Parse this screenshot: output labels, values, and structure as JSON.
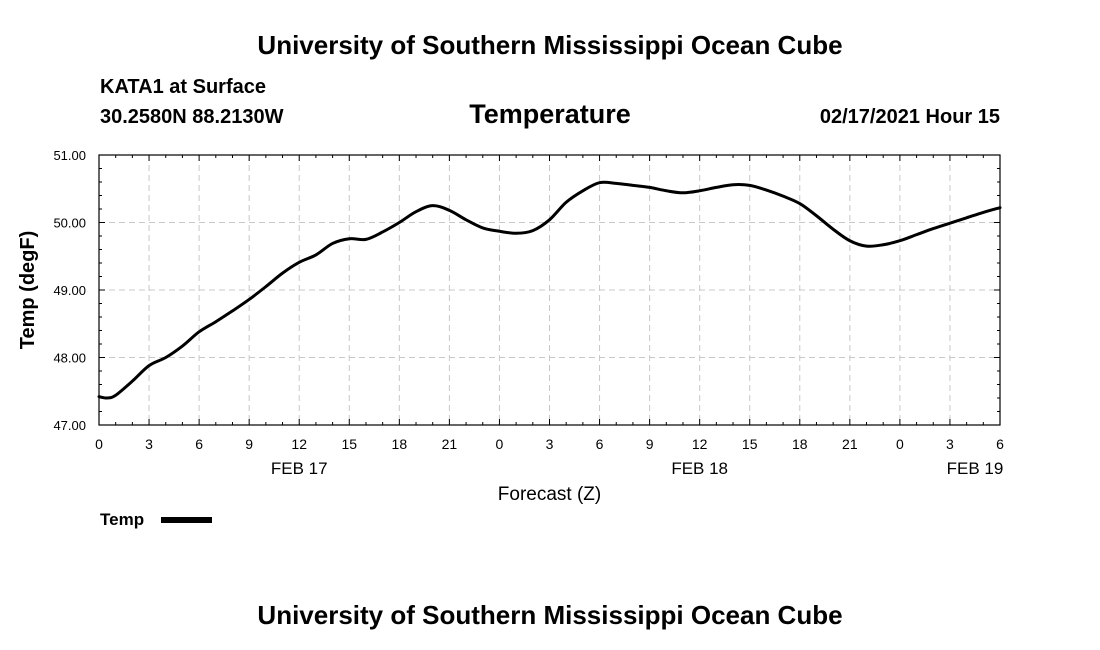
{
  "banner_top": "University of Southern Mississippi Ocean Cube",
  "banner_bottom": "University of Southern Mississippi Ocean Cube",
  "station": "KATA1 at Surface",
  "coords": "30.2580N 88.2130W",
  "timestamp": "02/17/2021 Hour 15",
  "chart_data": {
    "type": "line",
    "title": "Temperature",
    "xlabel": "Forecast (Z)",
    "ylabel": "Temp (degF)",
    "ylim": [
      47.0,
      51.0
    ],
    "xlim": [
      0,
      54
    ],
    "grid": true,
    "y_ticks": [
      "47.00",
      "48.00",
      "49.00",
      "50.00",
      "51.00"
    ],
    "x_ticks": [
      "0",
      "3",
      "6",
      "9",
      "12",
      "15",
      "18",
      "21",
      "0",
      "3",
      "6",
      "9",
      "12",
      "15",
      "18",
      "21",
      "0",
      "3",
      "6"
    ],
    "day_labels": [
      {
        "label": "FEB 17",
        "hour": 12
      },
      {
        "label": "FEB 18",
        "hour": 36
      },
      {
        "label": "FEB 19",
        "hour": 52.5
      }
    ],
    "legend": [
      {
        "name": "Temp",
        "color": "#000000"
      }
    ],
    "series": [
      {
        "name": "Temp",
        "color": "#000000",
        "x": [
          0,
          0.5,
          1,
          2,
          3,
          4,
          5,
          6,
          7,
          8,
          9,
          10,
          11,
          12,
          13,
          14,
          15,
          16,
          17,
          18,
          19,
          20,
          21,
          22,
          23,
          24,
          25,
          26,
          27,
          28,
          29,
          30,
          31,
          32,
          33,
          34,
          35,
          36,
          37,
          38,
          39,
          40,
          41,
          42,
          43,
          44,
          45,
          46,
          47,
          48,
          49,
          50,
          51,
          52,
          53,
          54
        ],
        "values": [
          47.42,
          47.4,
          47.44,
          47.65,
          47.88,
          48.0,
          48.17,
          48.38,
          48.53,
          48.69,
          48.86,
          49.05,
          49.25,
          49.41,
          49.52,
          49.69,
          49.76,
          49.75,
          49.86,
          50.0,
          50.16,
          50.25,
          50.18,
          50.04,
          49.92,
          49.87,
          49.84,
          49.88,
          50.04,
          50.3,
          50.47,
          50.59,
          50.58,
          50.55,
          50.52,
          50.47,
          50.44,
          50.47,
          50.52,
          50.56,
          50.55,
          50.48,
          50.39,
          50.28,
          50.1,
          49.9,
          49.73,
          49.65,
          49.67,
          49.73,
          49.82,
          49.91,
          49.99,
          50.07,
          50.15,
          50.22
        ]
      }
    ]
  }
}
